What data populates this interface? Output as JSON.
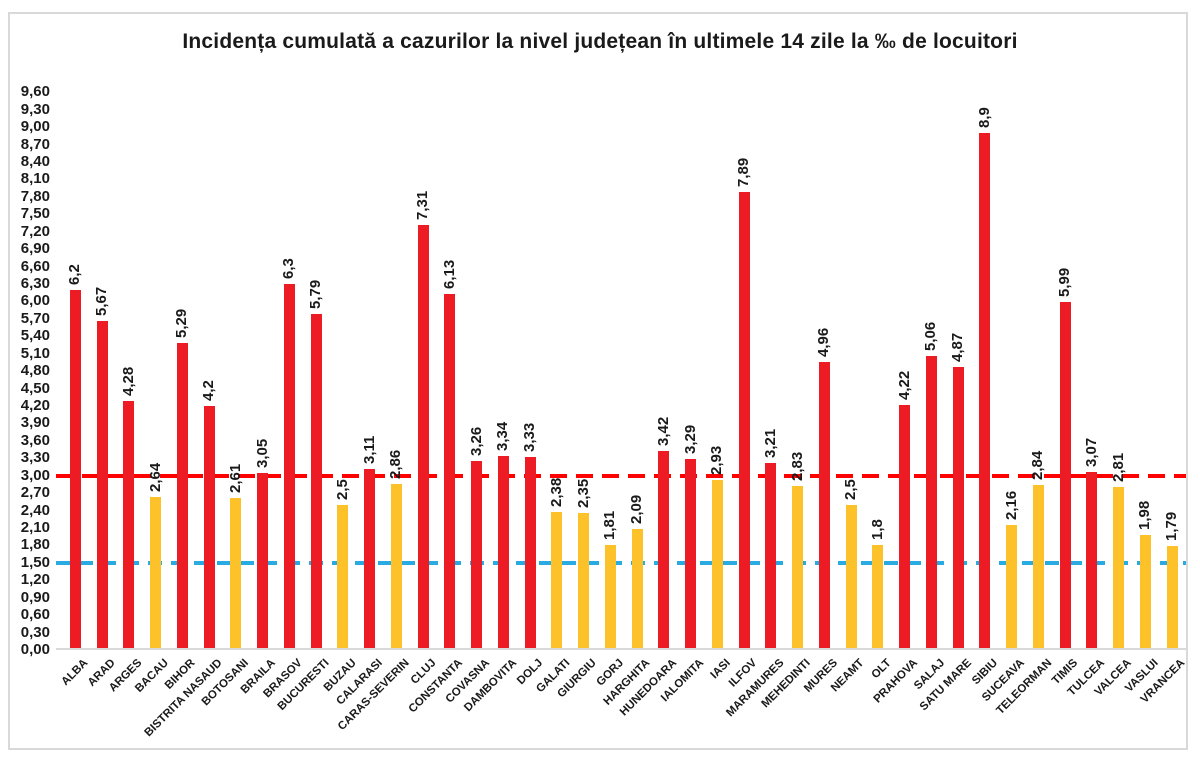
{
  "title": "Incidența cumulată a cazurilor la nivel județean în ultimele 14 zile la ‰ de locuitori",
  "chart_data": {
    "type": "bar",
    "title": "Incidența cumulată a cazurilor la nivel județean în ultimele 14 zile la ‰ de locuitori",
    "categories": [
      "ALBA",
      "ARAD",
      "ARGES",
      "BACAU",
      "BIHOR",
      "BISTRITA NASAUD",
      "BOTOSANI",
      "BRAILA",
      "BRASOV",
      "BUCURESTI",
      "BUZAU",
      "CALARASI",
      "CARAS-SEVERIN",
      "CLUJ",
      "CONSTANTA",
      "COVASNA",
      "DAMBOVITA",
      "DOLJ",
      "GALATI",
      "GIURGIU",
      "GORJ",
      "HARGHITA",
      "HUNEDOARA",
      "IALOMITA",
      "IASI",
      "ILFOV",
      "MARAMURES",
      "MEHEDINTI",
      "MURES",
      "NEAMT",
      "OLT",
      "PRAHOVA",
      "SALAJ",
      "SATU MARE",
      "SIBIU",
      "SUCEAVA",
      "TELEORMAN",
      "TIMIS",
      "TULCEA",
      "VALCEA",
      "VASLUI",
      "VRANCEA"
    ],
    "values": [
      6.2,
      5.67,
      4.28,
      2.64,
      5.29,
      4.2,
      2.61,
      3.05,
      6.3,
      5.79,
      2.5,
      3.11,
      2.86,
      7.31,
      6.13,
      3.26,
      3.34,
      3.33,
      2.38,
      2.35,
      1.81,
      2.09,
      3.42,
      3.29,
      2.93,
      7.89,
      3.21,
      2.83,
      4.96,
      2.5,
      1.8,
      4.22,
      5.06,
      4.87,
      8.9,
      2.16,
      2.84,
      5.99,
      3.07,
      2.81,
      1.98,
      1.79
    ],
    "value_labels": [
      "6,2",
      "5,67",
      "4,28",
      "2,64",
      "5,29",
      "4,2",
      "2,61",
      "3,05",
      "6,3",
      "5,79",
      "2,5",
      "3,11",
      "2,86",
      "7,31",
      "6,13",
      "3,26",
      "3,34",
      "3,33",
      "2,38",
      "2,35",
      "1,81",
      "2,09",
      "3,42",
      "3,29",
      "2,93",
      "7,89",
      "3,21",
      "2,83",
      "4,96",
      "2,5",
      "1,8",
      "4,22",
      "5,06",
      "4,87",
      "8,9",
      "2,16",
      "2,84",
      "5,99",
      "3,07",
      "2,81",
      "1,98",
      "1,79"
    ],
    "ylim": [
      0,
      9.6
    ],
    "y_tick_step": 0.3,
    "y_tick_labels": [
      "0,00",
      "0,30",
      "0,60",
      "0,90",
      "1,20",
      "1,50",
      "1,80",
      "2,10",
      "2,40",
      "2,70",
      "3,00",
      "3,30",
      "3,60",
      "3,90",
      "4,20",
      "4,50",
      "4,80",
      "5,10",
      "5,40",
      "5,70",
      "6,00",
      "6,30",
      "6,60",
      "6,90",
      "7,20",
      "7,50",
      "7,80",
      "8,10",
      "8,40",
      "8,70",
      "9,00",
      "9,30",
      "9,60"
    ],
    "grid": false,
    "legend_position": "none",
    "x_label_rotation_deg": 45,
    "value_label_rotation_deg": 90,
    "decimal_separator": ",",
    "color_threshold": 3.0,
    "bar_color_above_threshold": "#ed1c24",
    "bar_color_below_threshold": "#fdc129",
    "reference_lines": [
      {
        "name": "red-dashed-line",
        "value": 3.0,
        "color": "#ff0000",
        "style": "dashed"
      },
      {
        "name": "blue-dashed-line",
        "value": 1.5,
        "color": "#29abe2",
        "style": "dashed"
      }
    ]
  }
}
